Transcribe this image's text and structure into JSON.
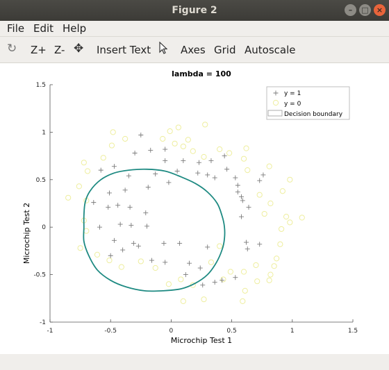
{
  "window": {
    "title": "Figure 2",
    "controls": [
      "minimize",
      "maximize",
      "close"
    ]
  },
  "menu": {
    "file": "File",
    "edit": "Edit",
    "help": "Help"
  },
  "toolbar": {
    "rotate_icon": "rotate-icon",
    "zoom_in": "Z+",
    "zoom_out": "Z-",
    "pan_icon": "pan-arrows-icon",
    "insert_text": "Insert Text",
    "select_icon": "pointer-arrow-icon",
    "axes": "Axes",
    "grid": "Grid",
    "autoscale": "Autoscale"
  },
  "chart_data": {
    "type": "scatter",
    "title": "lambda = 100",
    "xlabel": "Microchip Test 1",
    "ylabel": "Microchip Test 2",
    "xlim": [
      -1,
      1.5
    ],
    "ylim": [
      -1,
      1.5
    ],
    "xticks": [
      "-1",
      "-0.5",
      "0",
      "0.5",
      "1",
      "1.5"
    ],
    "yticks": [
      "-1",
      "-0.5",
      "0",
      "0.5",
      "1",
      "1.5"
    ],
    "grid": false,
    "legend_position": "top-right",
    "legend": [
      "y = 1",
      "y = 0",
      "Decision boundary"
    ],
    "colors": {
      "positive": "#7a7a7a",
      "negative": "#eeee9e",
      "boundary": "#1e8a82"
    },
    "series": [
      {
        "name": "y = 1",
        "marker": "+",
        "points": [
          [
            -0.25,
            0.97
          ],
          [
            -0.3,
            0.78
          ],
          [
            -0.17,
            0.81
          ],
          [
            -0.05,
            0.82
          ],
          [
            0.1,
            0.7
          ],
          [
            -0.05,
            0.7
          ],
          [
            0.05,
            0.59
          ],
          [
            0.23,
            0.68
          ],
          [
            0.33,
            0.7
          ],
          [
            0.44,
            0.75
          ],
          [
            0.46,
            0.61
          ],
          [
            0.53,
            0.52
          ],
          [
            0.22,
            0.57
          ],
          [
            0.3,
            0.55
          ],
          [
            0.55,
            0.44
          ],
          [
            0.36,
            0.52
          ],
          [
            -0.58,
            0.6
          ],
          [
            -0.47,
            0.64
          ],
          [
            -0.35,
            0.54
          ],
          [
            -0.13,
            0.56
          ],
          [
            -0.02,
            0.47
          ],
          [
            -0.19,
            0.42
          ],
          [
            -0.38,
            0.39
          ],
          [
            -0.51,
            0.36
          ],
          [
            -0.64,
            0.26
          ],
          [
            -0.44,
            0.23
          ],
          [
            -0.34,
            0.21
          ],
          [
            -0.52,
            0.21
          ],
          [
            -0.21,
            0.15
          ],
          [
            0.55,
            0.37
          ],
          [
            0.58,
            0.32
          ],
          [
            0.76,
            0.55
          ],
          [
            0.73,
            0.49
          ],
          [
            0.59,
            0.28
          ],
          [
            0.64,
            0.21
          ],
          [
            0.58,
            0.11
          ],
          [
            -0.59,
            0.0
          ],
          [
            -0.42,
            0.03
          ],
          [
            -0.33,
            0.02
          ],
          [
            -0.2,
            0.01
          ],
          [
            -0.47,
            -0.14
          ],
          [
            -0.31,
            -0.17
          ],
          [
            -0.27,
            -0.2
          ],
          [
            -0.4,
            -0.24
          ],
          [
            -0.5,
            -0.3
          ],
          [
            -0.16,
            -0.35
          ],
          [
            -0.06,
            -0.17
          ],
          [
            0.07,
            -0.17
          ],
          [
            0.3,
            -0.21
          ],
          [
            -0.05,
            -0.37
          ],
          [
            0.24,
            -0.43
          ],
          [
            0.15,
            -0.38
          ],
          [
            0.62,
            -0.16
          ],
          [
            0.63,
            -0.23
          ],
          [
            0.73,
            -0.18
          ],
          [
            0.53,
            -0.53
          ],
          [
            0.42,
            -0.56
          ],
          [
            0.36,
            -0.58
          ],
          [
            0.12,
            -0.5
          ],
          [
            0.26,
            -0.61
          ]
        ]
      },
      {
        "name": "y = 0",
        "marker": "o",
        "points": [
          [
            -0.48,
            1.0
          ],
          [
            -0.49,
            0.86
          ],
          [
            -0.38,
            0.93
          ],
          [
            -0.07,
            0.93
          ],
          [
            -0.01,
            1.01
          ],
          [
            0.03,
            0.88
          ],
          [
            0.1,
            0.85
          ],
          [
            0.06,
            1.05
          ],
          [
            0.14,
            0.92
          ],
          [
            0.28,
            1.08
          ],
          [
            0.4,
            0.82
          ],
          [
            0.48,
            0.78
          ],
          [
            0.62,
            0.83
          ],
          [
            0.6,
            0.72
          ],
          [
            0.18,
            0.8
          ],
          [
            0.27,
            0.74
          ],
          [
            0.63,
            0.6
          ],
          [
            0.81,
            0.64
          ],
          [
            0.98,
            0.5
          ],
          [
            0.92,
            0.38
          ],
          [
            0.73,
            0.34
          ],
          [
            0.82,
            0.25
          ],
          [
            0.77,
            0.14
          ],
          [
            0.95,
            0.11
          ],
          [
            1.08,
            0.1
          ],
          [
            0.98,
            0.05
          ],
          [
            -0.85,
            0.31
          ],
          [
            -0.76,
            0.43
          ],
          [
            -0.69,
            0.59
          ],
          [
            -0.56,
            0.73
          ],
          [
            -0.72,
            0.68
          ],
          [
            -0.7,
            0.28
          ],
          [
            -0.72,
            0.07
          ],
          [
            -0.7,
            -0.04
          ],
          [
            -0.75,
            -0.22
          ],
          [
            -0.61,
            -0.29
          ],
          [
            -0.51,
            -0.35
          ],
          [
            -0.41,
            -0.42
          ],
          [
            -0.25,
            -0.36
          ],
          [
            -0.13,
            -0.43
          ],
          [
            -0.02,
            -0.6
          ],
          [
            0.08,
            -0.55
          ],
          [
            0.18,
            -0.61
          ],
          [
            0.1,
            -0.78
          ],
          [
            0.27,
            -0.76
          ],
          [
            0.43,
            -0.55
          ],
          [
            0.49,
            -0.47
          ],
          [
            0.6,
            -0.47
          ],
          [
            0.7,
            -0.4
          ],
          [
            0.85,
            -0.41
          ],
          [
            0.87,
            -0.33
          ],
          [
            0.82,
            -0.5
          ],
          [
            0.9,
            -0.18
          ],
          [
            0.91,
            -0.02
          ],
          [
            0.59,
            -0.78
          ],
          [
            0.61,
            -0.67
          ],
          [
            0.71,
            -0.57
          ],
          [
            0.81,
            -0.56
          ],
          [
            0.33,
            -0.37
          ],
          [
            0.4,
            -0.2
          ]
        ]
      }
    ],
    "decision_boundary": {
      "name": "Decision boundary",
      "points": [
        [
          -0.72,
          0.12
        ],
        [
          -0.71,
          0.26
        ],
        [
          -0.67,
          0.38
        ],
        [
          -0.58,
          0.5
        ],
        [
          -0.47,
          0.57
        ],
        [
          -0.35,
          0.6
        ],
        [
          -0.2,
          0.61
        ],
        [
          -0.05,
          0.59
        ],
        [
          0.08,
          0.53
        ],
        [
          0.2,
          0.46
        ],
        [
          0.3,
          0.37
        ],
        [
          0.38,
          0.25
        ],
        [
          0.42,
          0.12
        ],
        [
          0.44,
          0.0
        ],
        [
          0.44,
          -0.12
        ],
        [
          0.42,
          -0.24
        ],
        [
          0.37,
          -0.38
        ],
        [
          0.3,
          -0.5
        ],
        [
          0.2,
          -0.59
        ],
        [
          0.08,
          -0.65
        ],
        [
          -0.07,
          -0.67
        ],
        [
          -0.22,
          -0.67
        ],
        [
          -0.37,
          -0.63
        ],
        [
          -0.5,
          -0.56
        ],
        [
          -0.61,
          -0.45
        ],
        [
          -0.68,
          -0.3
        ],
        [
          -0.72,
          -0.15
        ],
        [
          -0.72,
          0.0
        ]
      ]
    }
  }
}
